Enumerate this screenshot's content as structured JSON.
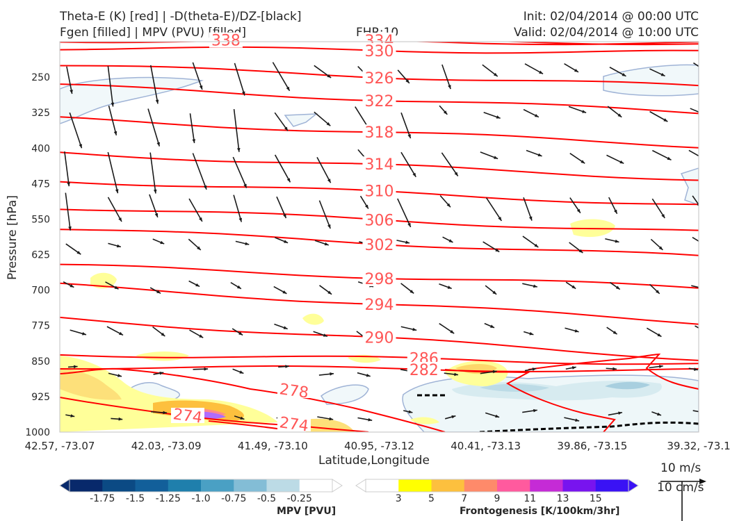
{
  "header": {
    "title_left_1": "Theta-E (K) [red] | -D(theta-E)/DZ-[black]",
    "title_left_2": "Fgen [filled] | MPV (PVU) [filled]",
    "fhr": "FHR:10",
    "init": "Init: 02/04/2014 @ 00:00 UTC",
    "valid": "Valid: 02/04/2014 @ 10:00 UTC"
  },
  "colors": {
    "theta_e": "#ff0000",
    "theta_e_label": "#ff5555",
    "vectors": "#1a1a1a",
    "mpv_outline": "#9fb3d6",
    "fgen_yellow": "#ffff66",
    "fgen_orange": "#fdb347",
    "fgen_purple": "#b06cff"
  },
  "chart_data": {
    "type": "cross-section",
    "ylabel": "Pressure [hPa]",
    "xlabel": "Latitude,Longitude",
    "y_ticks": [
      "250",
      "325",
      "400",
      "475",
      "550",
      "625",
      "700",
      "775",
      "850",
      "925",
      "1000"
    ],
    "y_range": [
      175,
      1000
    ],
    "x_ticks": [
      "42.57, -73.07",
      "42.03, -73.09",
      "41.49, -73.10",
      "40.95, -73.12",
      "40.41, -73.13",
      "39.86, -73.15",
      "39.32, -73.1"
    ],
    "theta_e_contours": [
      {
        "label": "338",
        "pressures": [
          165,
          178
        ],
        "label_pos": 0.26
      },
      {
        "label": "334",
        "pressures": [
          172,
          178
        ],
        "label_pos": 0.5
      },
      {
        "label": "330",
        "pressures": [
          188,
          198
        ],
        "label_pos": 0.5
      },
      {
        "label": "326",
        "pressures": [
          225,
          270
        ],
        "label_pos": 0.5
      },
      {
        "label": "322",
        "pressures": [
          268,
          325
        ],
        "label_pos": 0.5
      },
      {
        "label": "318",
        "pressures": [
          338,
          395
        ],
        "label_pos": 0.5
      },
      {
        "label": "314",
        "pressures": [
          410,
          465
        ],
        "label_pos": 0.5
      },
      {
        "label": "310",
        "pressures": [
          468,
          520
        ],
        "label_pos": 0.5
      },
      {
        "label": "306",
        "pressures": [
          525,
          578
        ],
        "label_pos": 0.5
      },
      {
        "label": "302",
        "pressures": [
          570,
          630
        ],
        "label_pos": 0.5
      },
      {
        "label": "298",
        "pressures": [
          648,
          695
        ],
        "label_pos": 0.5
      },
      {
        "label": "294",
        "pressures": [
          690,
          768
        ],
        "label_pos": 0.5
      },
      {
        "label": "290",
        "pressures": [
          760,
          845
        ],
        "label_pos": 0.5
      },
      {
        "label": "286",
        "pressures": [
          835,
          855
        ],
        "label_pos": 0.57
      },
      {
        "label": "282",
        "pressures": [
          862,
          870
        ],
        "label_pos": 0.57
      }
    ],
    "theta_e_low_labels": [
      {
        "label": "278"
      },
      {
        "label": "274"
      },
      {
        "label": "274"
      }
    ],
    "mpv_colorbar": {
      "label": "MPV [PVU]",
      "ticks": [
        "-1.75",
        "-1.5",
        "-1.25",
        "-1.0",
        "-0.75",
        "-0.5",
        "-0.25"
      ],
      "colors": [
        "#08296b",
        "#0b4a84",
        "#125f9a",
        "#1f7fac",
        "#4aa0c4",
        "#83bdd6",
        "#bcdbe6",
        "#ffffff"
      ]
    },
    "fgen_colorbar": {
      "label": "Frontogenesis [K/100km/3hr]",
      "ticks": [
        "3",
        "5",
        "7",
        "9",
        "11",
        "13",
        "15"
      ],
      "colors": [
        "#ffffff",
        "#ffff00",
        "#fdc03e",
        "#fe8a6a",
        "#ff5a9e",
        "#c52bd6",
        "#7814ef",
        "#3a12f5"
      ]
    },
    "vector_key": {
      "label_1": "10 m/s",
      "label_2": "10 cm/s"
    }
  }
}
